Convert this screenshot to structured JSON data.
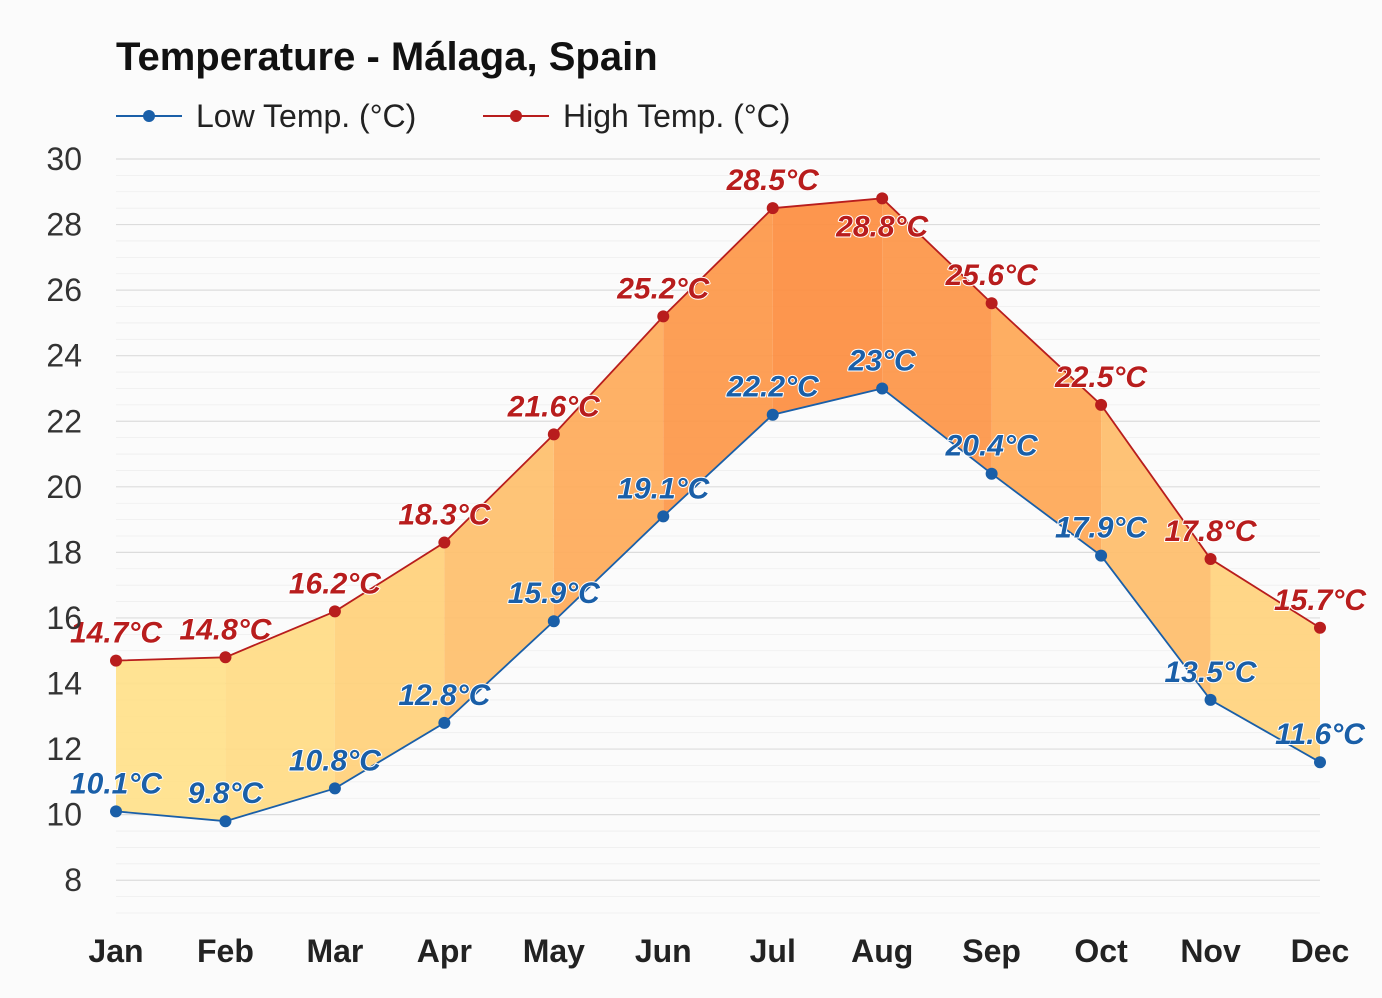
{
  "chart_data": {
    "type": "area",
    "title": "Temperature - Málaga, Spain",
    "categories": [
      "Jan",
      "Feb",
      "Mar",
      "Apr",
      "May",
      "Jun",
      "Jul",
      "Aug",
      "Sep",
      "Oct",
      "Nov",
      "Dec"
    ],
    "series": [
      {
        "name": "Low Temp. (°C)",
        "color": "#1a5fa8",
        "values": [
          10.1,
          9.8,
          10.8,
          12.8,
          15.9,
          19.1,
          22.2,
          23,
          20.4,
          17.9,
          13.5,
          11.6
        ],
        "labels": [
          "10.1°C",
          "9.8°C",
          "10.8°C",
          "12.8°C",
          "15.9°C",
          "19.1°C",
          "22.2°C",
          "23°C",
          "20.4°C",
          "17.9°C",
          "13.5°C",
          "11.6°C"
        ]
      },
      {
        "name": "High Temp. (°C)",
        "color": "#b81d1d",
        "values": [
          14.7,
          14.8,
          16.2,
          18.3,
          21.6,
          25.2,
          28.5,
          28.8,
          25.6,
          22.5,
          17.8,
          15.7
        ],
        "labels": [
          "14.7°C",
          "14.8°C",
          "16.2°C",
          "18.3°C",
          "21.6°C",
          "25.2°C",
          "28.5°C",
          "28.8°C",
          "25.6°C",
          "22.5°C",
          "17.8°C",
          "15.7°C"
        ]
      }
    ],
    "yticks": [
      "8",
      "10",
      "12",
      "14",
      "16",
      "18",
      "20",
      "22",
      "24",
      "26",
      "28",
      "30"
    ],
    "ylim": [
      7,
      30
    ],
    "grid": true,
    "legend_position": "top-left",
    "fill_colors": {
      "cool": "#ffe28a",
      "warm": "#fd8c3e"
    }
  }
}
